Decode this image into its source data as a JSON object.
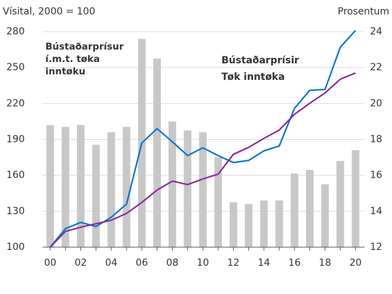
{
  "chart_data": {
    "type": "bar-line",
    "y_axis_label": "Vísital, 2000 = 100",
    "y2_axis_label": "Prosentum",
    "categories": [
      "00",
      null,
      "02",
      null,
      "04",
      null,
      "06",
      null,
      "08",
      null,
      "10",
      null,
      "12",
      null,
      "14",
      null,
      "16",
      null,
      "18",
      null,
      "20"
    ],
    "ylim": [
      100,
      280
    ],
    "yticks": [
      100,
      130,
      160,
      190,
      220,
      250,
      280
    ],
    "y2lim": [
      12,
      24
    ],
    "y2ticks": [
      12,
      14,
      16,
      18,
      20,
      22,
      24
    ],
    "grid": true,
    "annotations": [
      {
        "lines": [
          "Bústaðarprísur",
          "í.m.t. tøka",
          "inntøku"
        ],
        "color": "#a6a6a6"
      }
    ],
    "series": [
      {
        "name": "Bústaðarprísur í.m.t. tøka inntøku",
        "kind": "bar",
        "axis": "y2",
        "color": "#c8c8c8",
        "values": [
          18.8,
          18.7,
          18.8,
          17.7,
          18.4,
          18.7,
          23.6,
          22.5,
          19.0,
          18.5,
          18.4,
          17.0,
          14.5,
          14.4,
          14.6,
          14.6,
          16.1,
          16.3,
          15.5,
          16.8,
          17.4
        ]
      },
      {
        "name": "Bústaðarprísir",
        "kind": "line",
        "color": "#0a75c7",
        "values": [
          100,
          115.5,
          120.7,
          117.3,
          125,
          136,
          187,
          199,
          188,
          176.5,
          183,
          176.5,
          170.7,
          172.5,
          180.5,
          184.5,
          216,
          231,
          231.7,
          267,
          281
        ]
      },
      {
        "name": "Tøk inntøka",
        "kind": "line",
        "color": "#8b2a9b",
        "values": [
          100,
          113.2,
          116.7,
          119.6,
          122.5,
          128.2,
          137.4,
          147.7,
          155.2,
          152.3,
          157,
          161,
          177.6,
          183.4,
          190.9,
          197.8,
          211,
          220.2,
          228.8,
          240.3,
          245.5
        ]
      }
    ]
  }
}
